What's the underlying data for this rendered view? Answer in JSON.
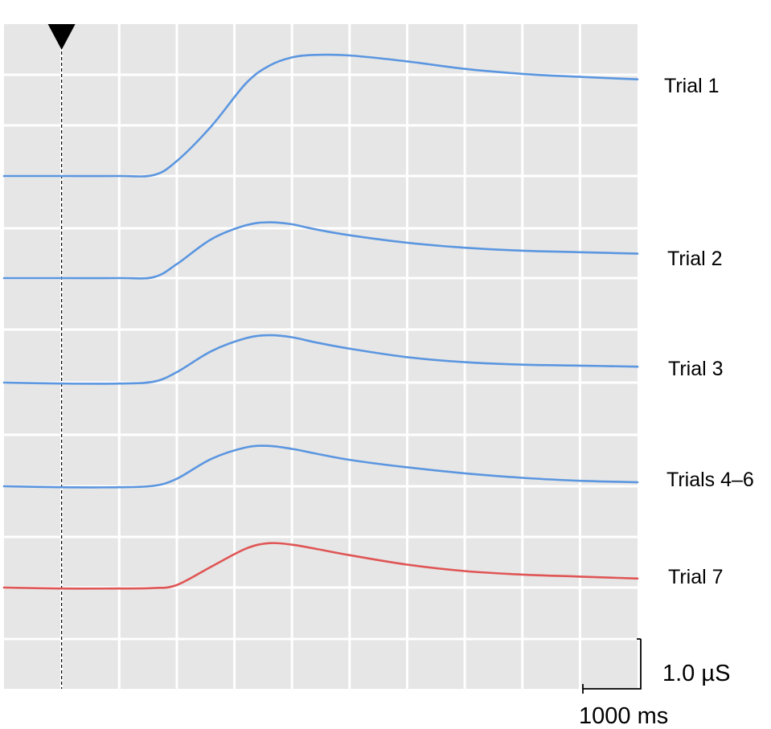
{
  "chart_data": {
    "type": "line",
    "title": "",
    "xlabel": "",
    "ylabel": "",
    "grid": true,
    "x_unit": "ms",
    "y_unit": "µS",
    "xlim": [
      -500,
      5000
    ],
    "stimulus_onset_ms": 0,
    "scale_bar": {
      "x_value": 1000,
      "x_label": "1000 ms",
      "y_value": 1.0,
      "y_label": "1.0 µS"
    },
    "x": [
      -500,
      0,
      500,
      800,
      1000,
      1300,
      1600,
      1800,
      2000,
      2200,
      2500,
      3000,
      3500,
      4000,
      4500,
      5000
    ],
    "series": [
      {
        "name": "Trial 1",
        "color": "#5b96e0",
        "values": [
          0,
          0,
          0,
          0.02,
          0.3,
          1.0,
          1.86,
          2.21,
          2.38,
          2.43,
          2.42,
          2.3,
          2.15,
          2.05,
          1.99,
          1.94
        ]
      },
      {
        "name": "Trial 2",
        "color": "#5b96e0",
        "values": [
          0,
          0,
          0,
          0.02,
          0.28,
          0.78,
          1.06,
          1.12,
          1.08,
          0.98,
          0.86,
          0.71,
          0.61,
          0.55,
          0.52,
          0.49
        ]
      },
      {
        "name": "Trial 3",
        "color": "#5b96e0",
        "values": [
          0,
          -0.02,
          -0.02,
          0.02,
          0.21,
          0.63,
          0.89,
          0.95,
          0.91,
          0.81,
          0.68,
          0.51,
          0.41,
          0.36,
          0.34,
          0.32
        ]
      },
      {
        "name": "Trials 4–6",
        "color": "#5b96e0",
        "values": [
          0,
          -0.02,
          -0.02,
          0.01,
          0.15,
          0.55,
          0.78,
          0.81,
          0.75,
          0.66,
          0.53,
          0.38,
          0.26,
          0.17,
          0.11,
          0.08
        ]
      },
      {
        "name": "Trial 7",
        "color": "#e05555",
        "values": [
          0,
          -0.02,
          -0.02,
          -0.01,
          0.05,
          0.42,
          0.78,
          0.89,
          0.86,
          0.78,
          0.65,
          0.46,
          0.33,
          0.26,
          0.22,
          0.18
        ]
      }
    ]
  }
}
